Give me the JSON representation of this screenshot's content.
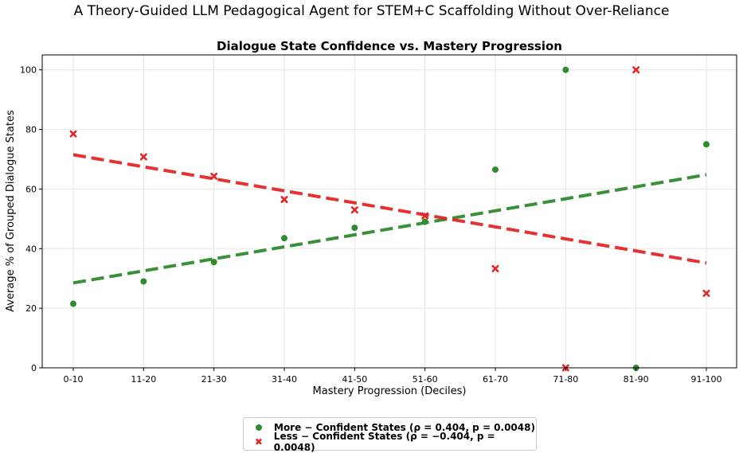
{
  "page": {
    "title": "A Theory-Guided LLM Pedagogical Agent for STEM+C Scaffolding Without Over-Reliance"
  },
  "chart_data": {
    "type": "scatter",
    "title": "Dialogue State Confidence vs. Mastery Progression",
    "xlabel": "Mastery Progression (Deciles)",
    "ylabel": "Average % of Grouped Dialogue States",
    "categories": [
      "0-10",
      "11-20",
      "21-30",
      "31-40",
      "41-50",
      "51-60",
      "61-70",
      "71-80",
      "81-90",
      "91-100"
    ],
    "ylim": [
      0,
      105
    ],
    "yticks": [
      0,
      20,
      40,
      60,
      80,
      100
    ],
    "grid": true,
    "legend_position": "bottom-center",
    "series": [
      {
        "name": "More − Confident States (ρ = 0.404, p = 0.0048)",
        "marker": "circle",
        "color": "#2e8b2e",
        "values": [
          21.5,
          29,
          35.5,
          43.5,
          47,
          49,
          66.5,
          100,
          0,
          75
        ],
        "trend": [
          28.5,
          64.8
        ]
      },
      {
        "name": "Less − Confident States (ρ = −0.404, p = 0.0048)",
        "marker": "x",
        "color": "#e32626",
        "values": [
          78.5,
          70.8,
          64.3,
          56.5,
          53,
          51,
          33.3,
          0,
          100,
          25
        ],
        "trend": [
          71.5,
          35.2
        ]
      }
    ]
  }
}
